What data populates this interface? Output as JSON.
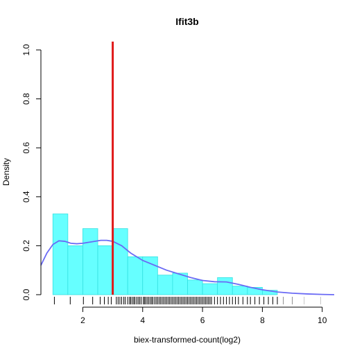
{
  "chart_data": {
    "type": "histogram",
    "title": "Ifit3b",
    "xlabel": "biex-transformed-count(log2)",
    "ylabel": "Density",
    "xlim": [
      0.6,
      10.4
    ],
    "ylim": [
      0,
      1.0
    ],
    "x_ticks": [
      2,
      4,
      6,
      8,
      10
    ],
    "y_ticks": [
      0.0,
      0.2,
      0.4,
      0.6,
      0.8,
      1.0
    ],
    "x_tick_labels": [
      "2",
      "4",
      "6",
      "8",
      "10"
    ],
    "y_tick_labels": [
      "0.0",
      "0.2",
      "0.4",
      "0.6",
      "0.8",
      "1.0"
    ],
    "bins": [
      {
        "x0": 1.0,
        "x1": 1.5,
        "density": 0.33
      },
      {
        "x0": 1.5,
        "x1": 2.0,
        "density": 0.2
      },
      {
        "x0": 2.0,
        "x1": 2.5,
        "density": 0.27
      },
      {
        "x0": 2.5,
        "x1": 3.0,
        "density": 0.2
      },
      {
        "x0": 3.0,
        "x1": 3.5,
        "density": 0.27
      },
      {
        "x0": 3.5,
        "x1": 4.0,
        "density": 0.155
      },
      {
        "x0": 4.0,
        "x1": 4.5,
        "density": 0.155
      },
      {
        "x0": 4.5,
        "x1": 5.0,
        "density": 0.08
      },
      {
        "x0": 5.0,
        "x1": 5.5,
        "density": 0.088
      },
      {
        "x0": 5.5,
        "x1": 6.0,
        "density": 0.06
      },
      {
        "x0": 6.0,
        "x1": 6.5,
        "density": 0.045
      },
      {
        "x0": 6.5,
        "x1": 7.0,
        "density": 0.07
      },
      {
        "x0": 7.0,
        "x1": 7.5,
        "density": 0.035
      },
      {
        "x0": 7.5,
        "x1": 8.0,
        "density": 0.03
      },
      {
        "x0": 8.0,
        "x1": 8.5,
        "density": 0.018
      }
    ],
    "density_curve": {
      "x": [
        0.6,
        0.8,
        1.0,
        1.2,
        1.4,
        1.6,
        1.8,
        2.0,
        2.3,
        2.6,
        2.8,
        3.0,
        3.3,
        3.6,
        4.0,
        4.4,
        4.8,
        5.2,
        5.6,
        6.0,
        6.4,
        6.8,
        7.2,
        7.6,
        8.0,
        8.5,
        9.0,
        9.5,
        10.0,
        10.4
      ],
      "y": [
        0.12,
        0.17,
        0.205,
        0.22,
        0.218,
        0.21,
        0.208,
        0.21,
        0.216,
        0.222,
        0.222,
        0.218,
        0.2,
        0.17,
        0.14,
        0.12,
        0.1,
        0.085,
        0.07,
        0.058,
        0.053,
        0.052,
        0.042,
        0.03,
        0.02,
        0.011,
        0.006,
        0.003,
        0.001,
        0.0
      ]
    },
    "threshold_x": 3.0,
    "rug": [
      1.05,
      1.58,
      2.02,
      2.33,
      2.58,
      2.72,
      2.85,
      2.95,
      3.12,
      3.18,
      3.24,
      3.3,
      3.37,
      3.42,
      3.5,
      3.56,
      3.6,
      3.65,
      3.7,
      3.74,
      3.8,
      3.85,
      3.9,
      3.95,
      4.02,
      4.06,
      4.1,
      4.15,
      4.2,
      4.25,
      4.3,
      4.34,
      4.4,
      4.45,
      4.5,
      4.55,
      4.6,
      4.65,
      4.7,
      4.75,
      4.8,
      4.85,
      4.9,
      4.95,
      5.0,
      5.05,
      5.1,
      5.15,
      5.2,
      5.25,
      5.3,
      5.35,
      5.4,
      5.45,
      5.5,
      5.55,
      5.6,
      5.65,
      5.7,
      5.75,
      5.8,
      5.85,
      5.9,
      5.95,
      6.0,
      6.05,
      6.1,
      6.15,
      6.2,
      6.25,
      6.3,
      6.4,
      6.5,
      6.6,
      6.7,
      6.8,
      6.9,
      7.0,
      7.1,
      7.2,
      7.35,
      7.5,
      7.6,
      7.75,
      7.9,
      8.05,
      8.2,
      8.35,
      8.5,
      8.7,
      9.0,
      9.4,
      9.95
    ],
    "colors": {
      "bar_fill": "#66FFFF",
      "bar_stroke": "#33E0E0",
      "density_line": "#6A6AF5",
      "threshold_line": "#E01818",
      "axis": "#000000",
      "rug": "#000000"
    }
  }
}
